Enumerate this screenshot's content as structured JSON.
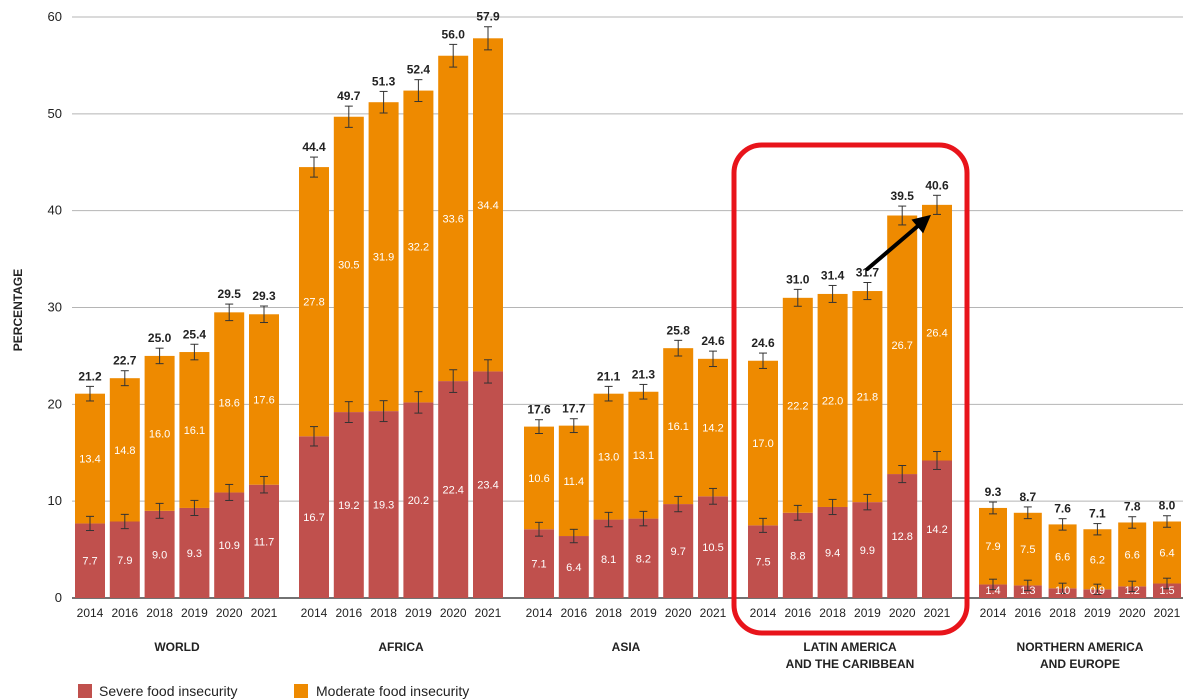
{
  "chart_data": {
    "type": "bar",
    "stacked": true,
    "ylabel": "PERCENTAGE",
    "ylim": [
      0,
      60
    ],
    "yticks": [
      "0",
      "10",
      "20",
      "30",
      "40",
      "50",
      "60"
    ],
    "grid": true,
    "legend_position": "bottom-left",
    "colors": {
      "severe": "#c0504d",
      "moderate": "#ee8a00"
    },
    "series": [
      {
        "name": "Severe food insecurity",
        "key": "severe"
      },
      {
        "name": "Moderate food insecurity",
        "key": "moderate"
      }
    ],
    "groups": [
      {
        "region": [
          "WORLD"
        ],
        "bars": [
          {
            "year": "2014",
            "severe": 7.7,
            "moderate": 13.4,
            "total": "21.2"
          },
          {
            "year": "2016",
            "severe": 7.9,
            "moderate": 14.8,
            "total": "22.7"
          },
          {
            "year": "2018",
            "severe": 9.0,
            "moderate": 16.0,
            "total": "25.0"
          },
          {
            "year": "2019",
            "severe": 9.3,
            "moderate": 16.1,
            "total": "25.4"
          },
          {
            "year": "2020",
            "severe": 10.9,
            "moderate": 18.6,
            "total": "29.5"
          },
          {
            "year": "2021",
            "severe": 11.7,
            "moderate": 17.6,
            "total": "29.3"
          }
        ]
      },
      {
        "region": [
          "AFRICA"
        ],
        "bars": [
          {
            "year": "2014",
            "severe": 16.7,
            "moderate": 27.8,
            "total": "44.4"
          },
          {
            "year": "2016",
            "severe": 19.2,
            "moderate": 30.5,
            "total": "49.7"
          },
          {
            "year": "2018",
            "severe": 19.3,
            "moderate": 31.9,
            "total": "51.3"
          },
          {
            "year": "2019",
            "severe": 20.2,
            "moderate": 32.2,
            "total": "52.4"
          },
          {
            "year": "2020",
            "severe": 22.4,
            "moderate": 33.6,
            "total": "56.0"
          },
          {
            "year": "2021",
            "severe": 23.4,
            "moderate": 34.4,
            "total": "57.9"
          }
        ]
      },
      {
        "region": [
          "ASIA"
        ],
        "bars": [
          {
            "year": "2014",
            "severe": 7.1,
            "moderate": 10.6,
            "total": "17.6"
          },
          {
            "year": "2016",
            "severe": 6.4,
            "moderate": 11.4,
            "total": "17.7"
          },
          {
            "year": "2018",
            "severe": 8.1,
            "moderate": 13.0,
            "total": "21.1"
          },
          {
            "year": "2019",
            "severe": 8.2,
            "moderate": 13.1,
            "total": "21.3"
          },
          {
            "year": "2020",
            "severe": 9.7,
            "moderate": 16.1,
            "total": "25.8"
          },
          {
            "year": "2021",
            "severe": 10.5,
            "moderate": 14.2,
            "total": "24.6"
          }
        ]
      },
      {
        "region": [
          "LATIN AMERICA",
          "AND THE CARIBBEAN"
        ],
        "highlighted": true,
        "bars": [
          {
            "year": "2014",
            "severe": 7.5,
            "moderate": 17.0,
            "total": "24.6"
          },
          {
            "year": "2016",
            "severe": 8.8,
            "moderate": 22.2,
            "total": "31.0"
          },
          {
            "year": "2018",
            "severe": 9.4,
            "moderate": 22.0,
            "total": "31.4"
          },
          {
            "year": "2019",
            "severe": 9.9,
            "moderate": 21.8,
            "total": "31.7"
          },
          {
            "year": "2020",
            "severe": 12.8,
            "moderate": 26.7,
            "total": "39.5"
          },
          {
            "year": "2021",
            "severe": 14.2,
            "moderate": 26.4,
            "total": "40.6"
          }
        ]
      },
      {
        "region": [
          "NORTHERN AMERICA",
          "AND EUROPE"
        ],
        "bars": [
          {
            "year": "2014",
            "severe": 1.4,
            "moderate": 7.9,
            "total": "9.3"
          },
          {
            "year": "2016",
            "severe": 1.3,
            "moderate": 7.5,
            "total": "8.7"
          },
          {
            "year": "2018",
            "severe": 1.0,
            "moderate": 6.6,
            "total": "7.6"
          },
          {
            "year": "2019",
            "severe": 0.9,
            "moderate": 6.2,
            "total": "7.1"
          },
          {
            "year": "2020",
            "severe": 1.2,
            "moderate": 6.6,
            "total": "7.8"
          },
          {
            "year": "2021",
            "severe": 1.5,
            "moderate": 6.4,
            "total": "8.0"
          }
        ]
      }
    ],
    "annotations": {
      "highlight_box_color": "#e8141b",
      "arrow_color": "#000000"
    }
  }
}
